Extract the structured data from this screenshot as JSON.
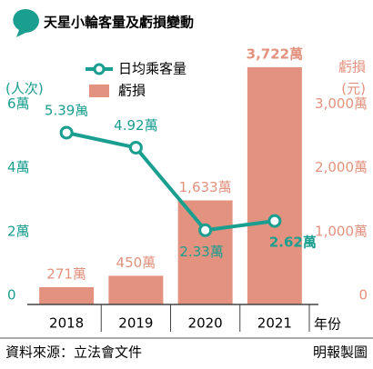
{
  "chart_data": {
    "type": "combo",
    "title": "天星小輪客量及虧損變動",
    "categories": [
      "2018",
      "2019",
      "2020",
      "2021"
    ],
    "x_label": "年份",
    "y_label": "(人次)",
    "y2_label": "虧損",
    "y2_unit": "(元)",
    "ylim": [
      0,
      7.5
    ],
    "yticks": [
      0,
      {
        "value": 2,
        "label": "2萬"
      },
      {
        "value": 4,
        "label": "4萬"
      },
      {
        "value": 6,
        "label": "6萬"
      }
    ],
    "y2lim": [
      0,
      3750
    ],
    "y2ticks": [
      0,
      {
        "value": 1000,
        "label": "1,000萬"
      },
      {
        "value": 2000,
        "label": "2,000萬"
      },
      {
        "value": 3000,
        "label": "3,000萬"
      }
    ],
    "series": [
      {
        "name": "日均乘客量",
        "type": "line",
        "color": "#1a9e8f",
        "values": [
          5.39,
          4.92,
          2.33,
          2.62
        ],
        "value_labels": [
          "5.39萬",
          "4.92萬",
          "2.33萬",
          "2.62萬"
        ]
      },
      {
        "name": "虧損",
        "type": "bar",
        "axis": "y2",
        "color": "#e3927f",
        "values": [
          271,
          450,
          1633,
          3722
        ],
        "value_labels": [
          "271萬",
          "450萬",
          "1,633萬",
          "3,722萬"
        ]
      }
    ],
    "source": "資料來源：立法會文件",
    "credit": "明報製圖"
  }
}
